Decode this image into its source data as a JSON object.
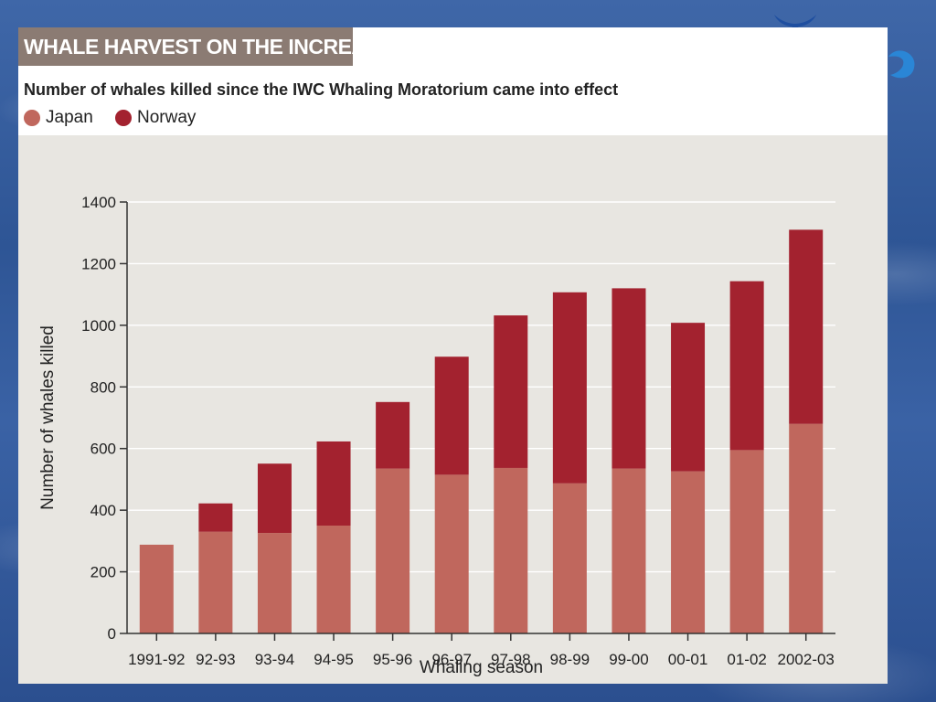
{
  "header": {
    "title": "WHALE HARVEST ON THE INCREASE",
    "subtitle": "Number of whales killed since the IWC Whaling Moratorium came into effect"
  },
  "colors": {
    "japan": "#c0675d",
    "norway": "#a3222f",
    "title_band": "#8b7b73",
    "panel": "#e8e6e1"
  },
  "chart_data": {
    "type": "bar",
    "stacked": true,
    "categories": [
      "1991-92",
      "92-93",
      "93-94",
      "94-95",
      "95-96",
      "96-97",
      "97-98",
      "98-99",
      "99-00",
      "00-01",
      "01-02",
      "2002-03"
    ],
    "series": [
      {
        "name": "Japan",
        "values": [
          288,
          330,
          326,
          350,
          535,
          515,
          537,
          487,
          535,
          526,
          595,
          680
        ]
      },
      {
        "name": "Norway",
        "values": [
          0,
          92,
          225,
          273,
          216,
          383,
          495,
          620,
          585,
          482,
          548,
          630
        ]
      }
    ],
    "xlabel": "Whaling season",
    "ylabel": "Number of whales killed",
    "ylim": [
      0,
      1400
    ],
    "yticks": [
      0,
      200,
      400,
      600,
      800,
      1000,
      1200,
      1400
    ],
    "grid": true,
    "legend_position": "top-left"
  }
}
